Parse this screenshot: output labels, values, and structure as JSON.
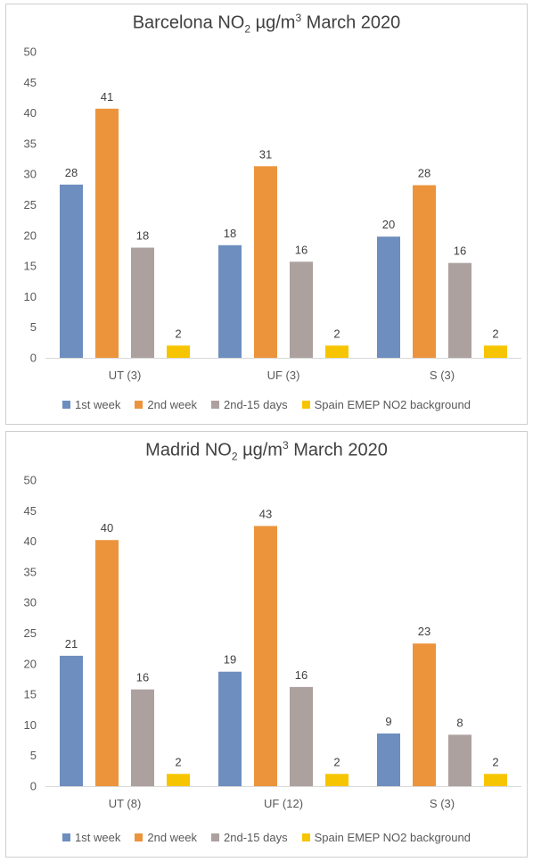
{
  "colors": {
    "1st week": "#6d8ebf",
    "2nd week": "#ec943c",
    "2nd-15 days": "#aca19f",
    "Spain EMEP NO2 background": "#f7c500"
  },
  "chart_data": [
    {
      "type": "bar",
      "title": {
        "pre": "Barcelona NO",
        "sub": "2",
        "mid": " µg/m",
        "sup": "3",
        "post": " March 2020"
      },
      "categories": [
        "UT (3)",
        "UF (3)",
        "S (3)"
      ],
      "ylim": [
        0,
        50
      ],
      "yticks": [
        0,
        5,
        10,
        15,
        20,
        25,
        30,
        35,
        40,
        45,
        50
      ],
      "grid": false,
      "legend_position": "bottom",
      "series": [
        {
          "name": "1st week",
          "values": [
            28.3,
            18.4,
            19.8
          ],
          "labels": [
            "28",
            "18",
            "20"
          ]
        },
        {
          "name": "2nd week",
          "values": [
            40.7,
            31.3,
            28.2
          ],
          "labels": [
            "41",
            "31",
            "28"
          ]
        },
        {
          "name": "2nd-15 days",
          "values": [
            18.0,
            15.7,
            15.5
          ],
          "labels": [
            "18",
            "16",
            "16"
          ]
        },
        {
          "name": "Spain EMEP NO2 background",
          "values": [
            2,
            2,
            2
          ],
          "labels": [
            "2",
            "2",
            "2"
          ]
        }
      ]
    },
    {
      "type": "bar",
      "title": {
        "pre": "Madrid NO",
        "sub": "2",
        "mid": " µg/m",
        "sup": "3",
        "post": " March 2020"
      },
      "categories": [
        "UT (8)",
        "UF (12)",
        "S (3)"
      ],
      "ylim": [
        0,
        50
      ],
      "yticks": [
        0,
        5,
        10,
        15,
        20,
        25,
        30,
        35,
        40,
        45,
        50
      ],
      "grid": false,
      "legend_position": "bottom",
      "series": [
        {
          "name": "1st week",
          "values": [
            21.3,
            18.7,
            8.6
          ],
          "labels": [
            "21",
            "19",
            "9"
          ]
        },
        {
          "name": "2nd week",
          "values": [
            40.2,
            42.5,
            23.3
          ],
          "labels": [
            "40",
            "43",
            "23"
          ]
        },
        {
          "name": "2nd-15 days",
          "values": [
            15.8,
            16.2,
            8.4
          ],
          "labels": [
            "16",
            "16",
            "8"
          ]
        },
        {
          "name": "Spain EMEP NO2 background",
          "values": [
            2,
            2,
            2
          ],
          "labels": [
            "2",
            "2",
            "2"
          ]
        }
      ]
    }
  ]
}
